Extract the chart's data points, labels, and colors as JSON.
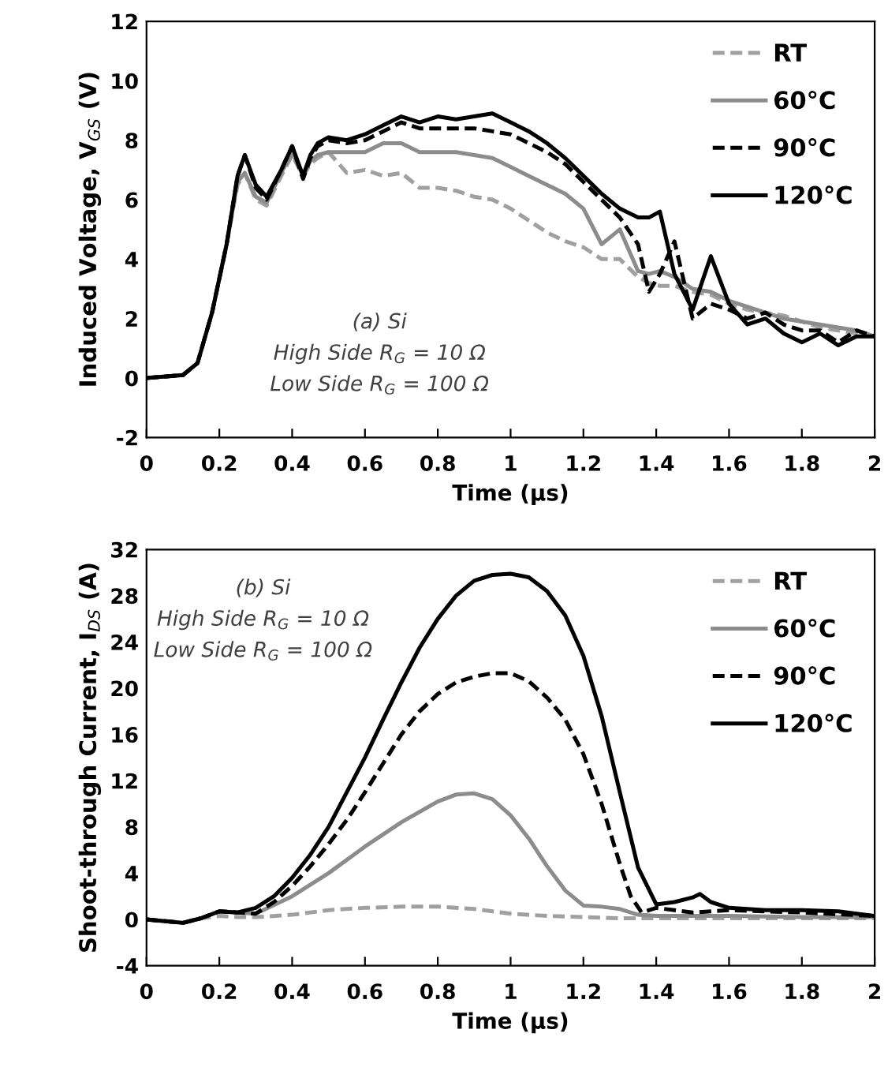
{
  "chart_data": [
    {
      "type": "line",
      "xlabel": "Time (µs)",
      "ylabel": "Induced Voltage, V$_{GS}$ (V)",
      "xlim": [
        0,
        2
      ],
      "ylim": [
        -2,
        12
      ],
      "xticks": [
        0,
        0.2,
        0.4,
        0.6,
        0.8,
        1,
        1.2,
        1.4,
        1.6,
        1.8,
        2
      ],
      "yticks": [
        -2,
        0,
        2,
        4,
        6,
        8,
        10,
        12
      ],
      "grid": false,
      "legend": "top right",
      "marker": "none",
      "annotations": [
        "(a) Si",
        "High Side R$_{G}$ = 10 Ω",
        "Low Side R$_{G}$ = 100 Ω"
      ],
      "series": [
        {
          "name": "RT",
          "color": "#a0a0a0",
          "line_style": "dashed",
          "x": [
            0,
            0.1,
            0.14,
            0.18,
            0.22,
            0.25,
            0.27,
            0.3,
            0.33,
            0.37,
            0.4,
            0.43,
            0.45,
            0.47,
            0.5,
            0.55,
            0.6,
            0.65,
            0.7,
            0.75,
            0.8,
            0.85,
            0.9,
            0.95,
            1.0,
            1.05,
            1.1,
            1.15,
            1.2,
            1.25,
            1.3,
            1.35,
            1.38,
            1.41,
            1.45,
            1.5,
            1.55,
            1.6,
            1.65,
            1.7,
            1.75,
            1.8,
            1.85,
            1.9,
            1.95,
            2.0
          ],
          "values": [
            0,
            0.1,
            0.5,
            2.2,
            4.5,
            6.5,
            6.9,
            6.0,
            5.8,
            6.8,
            7.5,
            6.8,
            7.2,
            7.4,
            7.6,
            6.9,
            7.0,
            6.8,
            6.9,
            6.4,
            6.4,
            6.3,
            6.1,
            6.0,
            5.7,
            5.3,
            4.9,
            4.6,
            4.4,
            4.0,
            4.0,
            3.4,
            3.2,
            3.1,
            3.1,
            2.9,
            2.8,
            2.5,
            2.3,
            2.2,
            2.1,
            1.9,
            1.7,
            1.6,
            1.5,
            1.4
          ]
        },
        {
          "name": "60°C",
          "color": "#8c8c8c",
          "line_style": "solid",
          "x": [
            0,
            0.1,
            0.14,
            0.18,
            0.22,
            0.25,
            0.27,
            0.3,
            0.33,
            0.37,
            0.4,
            0.43,
            0.45,
            0.47,
            0.5,
            0.55,
            0.6,
            0.65,
            0.7,
            0.75,
            0.8,
            0.85,
            0.9,
            0.95,
            1.0,
            1.05,
            1.1,
            1.15,
            1.2,
            1.25,
            1.3,
            1.35,
            1.38,
            1.41,
            1.45,
            1.5,
            1.55,
            1.6,
            1.65,
            1.7,
            1.75,
            1.8,
            1.85,
            1.9,
            1.95,
            2.0
          ],
          "values": [
            0,
            0.1,
            0.5,
            2.2,
            4.5,
            6.6,
            6.9,
            6.1,
            5.9,
            6.9,
            7.6,
            6.8,
            7.3,
            7.5,
            7.6,
            7.6,
            7.6,
            7.9,
            7.9,
            7.6,
            7.6,
            7.6,
            7.5,
            7.4,
            7.1,
            6.8,
            6.5,
            6.2,
            5.7,
            4.5,
            5.0,
            3.6,
            3.5,
            3.6,
            3.4,
            3.0,
            2.9,
            2.6,
            2.4,
            2.2,
            2.0,
            1.9,
            1.8,
            1.7,
            1.6,
            1.4
          ]
        },
        {
          "name": "90°C",
          "color": "#000000",
          "line_style": "dashed",
          "x": [
            0,
            0.1,
            0.14,
            0.18,
            0.22,
            0.25,
            0.27,
            0.3,
            0.33,
            0.37,
            0.4,
            0.43,
            0.45,
            0.47,
            0.5,
            0.55,
            0.6,
            0.65,
            0.7,
            0.75,
            0.8,
            0.85,
            0.9,
            0.95,
            1.0,
            1.05,
            1.1,
            1.15,
            1.2,
            1.25,
            1.3,
            1.35,
            1.38,
            1.41,
            1.45,
            1.5,
            1.55,
            1.6,
            1.65,
            1.7,
            1.75,
            1.8,
            1.85,
            1.9,
            1.95,
            2.0
          ],
          "values": [
            0,
            0.1,
            0.5,
            2.2,
            4.5,
            6.8,
            7.5,
            6.4,
            6.0,
            7.0,
            7.8,
            6.7,
            7.4,
            7.8,
            8.0,
            7.9,
            8.0,
            8.3,
            8.6,
            8.4,
            8.4,
            8.4,
            8.4,
            8.3,
            8.2,
            7.9,
            7.6,
            7.2,
            6.6,
            6.0,
            5.4,
            4.5,
            2.9,
            3.5,
            4.6,
            2.0,
            2.5,
            2.3,
            2.0,
            2.2,
            1.8,
            1.6,
            1.6,
            1.2,
            1.6,
            1.4
          ]
        },
        {
          "name": "120°C",
          "color": "#000000",
          "line_style": "solid",
          "x": [
            0,
            0.1,
            0.14,
            0.18,
            0.22,
            0.25,
            0.27,
            0.3,
            0.33,
            0.37,
            0.4,
            0.43,
            0.45,
            0.47,
            0.5,
            0.55,
            0.6,
            0.65,
            0.7,
            0.75,
            0.8,
            0.85,
            0.9,
            0.95,
            1.0,
            1.05,
            1.1,
            1.15,
            1.2,
            1.25,
            1.3,
            1.35,
            1.38,
            1.41,
            1.45,
            1.5,
            1.55,
            1.6,
            1.65,
            1.7,
            1.75,
            1.8,
            1.85,
            1.9,
            1.95,
            2.0
          ],
          "values": [
            0,
            0.1,
            0.5,
            2.2,
            4.5,
            6.8,
            7.5,
            6.5,
            6.1,
            7.0,
            7.8,
            6.8,
            7.5,
            7.9,
            8.1,
            8.0,
            8.2,
            8.5,
            8.8,
            8.6,
            8.8,
            8.7,
            8.8,
            8.9,
            8.6,
            8.3,
            7.9,
            7.4,
            6.8,
            6.2,
            5.7,
            5.4,
            5.4,
            5.6,
            3.5,
            2.3,
            4.1,
            2.5,
            1.8,
            2.0,
            1.5,
            1.2,
            1.5,
            1.1,
            1.4,
            1.4
          ]
        }
      ]
    },
    {
      "type": "line",
      "xlabel": "Time (µs)",
      "ylabel": "Shoot-through Current, I$_{DS}$ (A)",
      "xlim": [
        0,
        2
      ],
      "ylim": [
        -4,
        32
      ],
      "xticks": [
        0,
        0.2,
        0.4,
        0.6,
        0.8,
        1,
        1.2,
        1.4,
        1.6,
        1.8,
        2
      ],
      "yticks": [
        -4,
        0,
        4,
        8,
        12,
        16,
        20,
        24,
        28,
        32
      ],
      "grid": false,
      "legend": "top right",
      "marker": "none",
      "annotations": [
        "(b) Si",
        "High Side R$_{G}$ = 10 Ω",
        "Low Side R$_{G}$ = 100 Ω"
      ],
      "series": [
        {
          "name": "RT",
          "color": "#a0a0a0",
          "line_style": "dashed",
          "x": [
            0,
            0.1,
            0.15,
            0.2,
            0.25,
            0.3,
            0.4,
            0.5,
            0.6,
            0.7,
            0.8,
            0.9,
            1.0,
            1.1,
            1.2,
            1.3,
            1.5,
            1.7,
            2.0
          ],
          "values": [
            0,
            -0.3,
            0.1,
            0.3,
            0.2,
            0.2,
            0.4,
            0.8,
            1.0,
            1.1,
            1.1,
            0.9,
            0.5,
            0.3,
            0.2,
            0.1,
            0.1,
            0.1,
            0.1
          ]
        },
        {
          "name": "60°C",
          "color": "#8c8c8c",
          "line_style": "solid",
          "x": [
            0,
            0.1,
            0.15,
            0.2,
            0.25,
            0.3,
            0.4,
            0.5,
            0.6,
            0.7,
            0.8,
            0.85,
            0.9,
            0.95,
            1.0,
            1.05,
            1.1,
            1.15,
            1.2,
            1.25,
            1.3,
            1.35,
            1.4,
            1.6,
            1.8,
            2.0
          ],
          "values": [
            0,
            -0.3,
            0.1,
            0.7,
            0.6,
            0.5,
            2.0,
            4.0,
            6.3,
            8.4,
            10.2,
            10.8,
            10.9,
            10.4,
            9.0,
            7.0,
            4.6,
            2.5,
            1.2,
            1.1,
            0.9,
            0.4,
            0.3,
            0.3,
            0.2,
            0.2
          ]
        },
        {
          "name": "90°C",
          "color": "#000000",
          "line_style": "dashed",
          "x": [
            0,
            0.1,
            0.15,
            0.2,
            0.25,
            0.3,
            0.35,
            0.4,
            0.45,
            0.5,
            0.55,
            0.6,
            0.65,
            0.7,
            0.75,
            0.8,
            0.85,
            0.9,
            0.95,
            1.0,
            1.05,
            1.1,
            1.15,
            1.2,
            1.25,
            1.3,
            1.33,
            1.36,
            1.4,
            1.5,
            1.6,
            1.8,
            2.0
          ],
          "values": [
            0,
            -0.3,
            0.1,
            0.7,
            0.6,
            0.5,
            1.5,
            2.9,
            4.6,
            6.5,
            8.6,
            11.0,
            13.5,
            16.0,
            18.0,
            19.5,
            20.5,
            21.0,
            21.3,
            21.3,
            20.6,
            19.2,
            17.3,
            14.3,
            10.0,
            4.8,
            2.0,
            0.6,
            1.0,
            0.6,
            0.8,
            0.6,
            0.3
          ]
        },
        {
          "name": "120°C",
          "color": "#000000",
          "line_style": "solid",
          "x": [
            0,
            0.1,
            0.15,
            0.2,
            0.25,
            0.3,
            0.35,
            0.4,
            0.45,
            0.5,
            0.55,
            0.6,
            0.65,
            0.7,
            0.75,
            0.8,
            0.85,
            0.9,
            0.95,
            1.0,
            1.05,
            1.1,
            1.15,
            1.2,
            1.25,
            1.3,
            1.35,
            1.4,
            1.45,
            1.5,
            1.52,
            1.55,
            1.6,
            1.7,
            1.8,
            1.9,
            2.0
          ],
          "values": [
            0,
            -0.3,
            0.1,
            0.7,
            0.6,
            1.0,
            2.0,
            3.6,
            5.6,
            8.0,
            11.0,
            14.0,
            17.3,
            20.5,
            23.5,
            26.0,
            28.0,
            29.3,
            29.8,
            29.9,
            29.6,
            28.4,
            26.3,
            22.8,
            17.6,
            11.0,
            4.5,
            1.3,
            1.5,
            1.9,
            2.2,
            1.5,
            1.0,
            0.8,
            0.8,
            0.7,
            0.3
          ]
        }
      ]
    }
  ]
}
